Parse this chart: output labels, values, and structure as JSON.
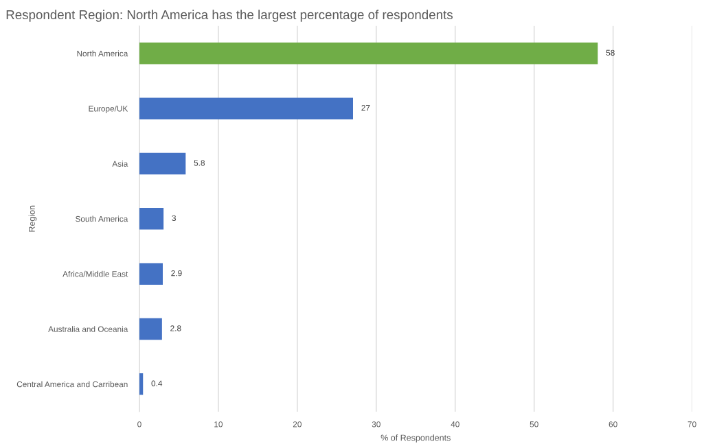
{
  "chart_data": {
    "type": "bar",
    "orientation": "horizontal",
    "title": "Respondent Region: North America has the largest percentage of respondents",
    "xlabel": "% of Respondents",
    "ylabel": "Region",
    "categories": [
      "North America",
      "Europe/UK",
      "Asia",
      "South America",
      "Africa/Middle East",
      "Australia and Oceania",
      "Central America and Carribean"
    ],
    "values": [
      58,
      27,
      5.8,
      3,
      2.9,
      2.8,
      0.4
    ],
    "colors": [
      "#70ad47",
      "#4472c4",
      "#4472c4",
      "#4472c4",
      "#4472c4",
      "#4472c4",
      "#4472c4"
    ],
    "xlim": [
      0,
      70
    ],
    "xticks": [
      0,
      10,
      20,
      30,
      40,
      50,
      60,
      70
    ],
    "grid": "x",
    "legend": false,
    "data_labels": true
  }
}
